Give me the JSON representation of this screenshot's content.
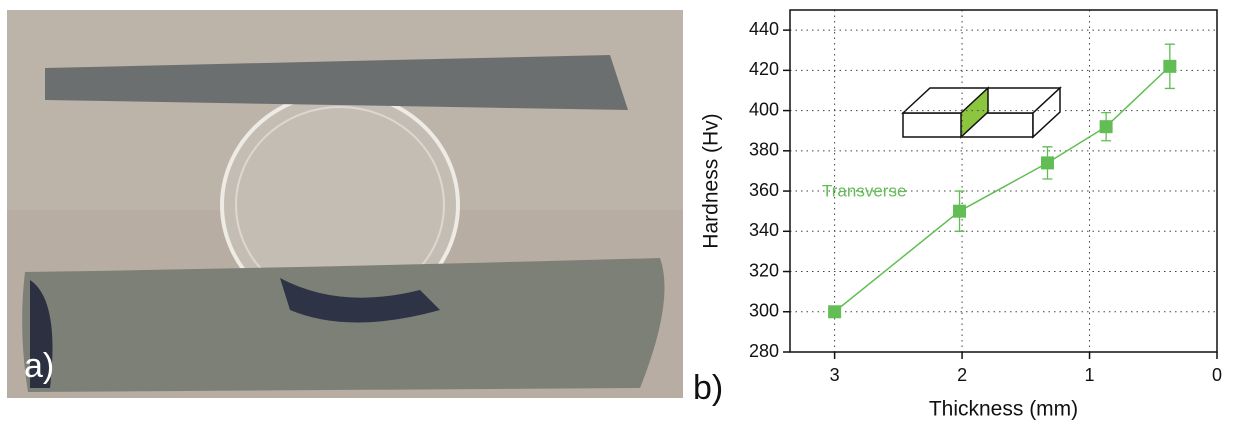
{
  "photo_label": "a)",
  "chart_label": "b)",
  "chart_data": {
    "type": "line",
    "x_label": "Thickness (mm)",
    "y_label": "Hardness (Hv)",
    "annotation": "Transverse",
    "xlim": [
      3.35,
      0
    ],
    "xticks": [
      3,
      2,
      1,
      0
    ],
    "ylim": [
      280,
      450
    ],
    "yticks": [
      280,
      300,
      320,
      340,
      360,
      380,
      400,
      420,
      440
    ],
    "grid": true,
    "series": [
      {
        "color": "#62bd55",
        "x": [
          3,
          2.02,
          1.33,
          0.87,
          0.37
        ],
        "values": [
          300,
          350,
          374,
          392,
          422
        ],
        "errors": [
          2,
          10,
          8,
          7,
          11
        ]
      }
    ]
  }
}
